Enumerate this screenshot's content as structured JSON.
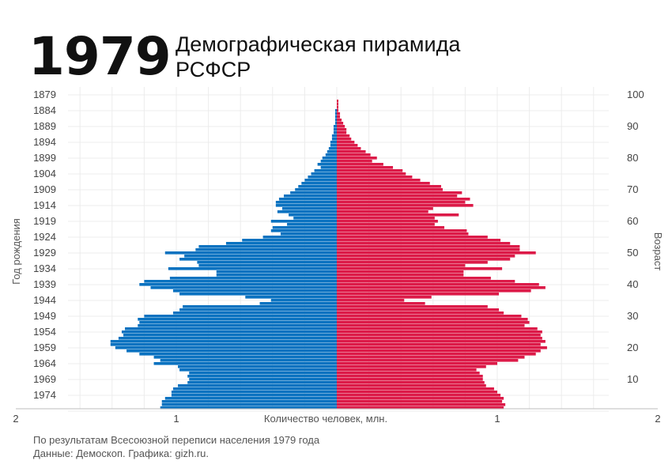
{
  "header": {
    "year": "1979",
    "title_line1": "Демографическая пирамида",
    "title_line2": "РСФСР"
  },
  "footer": {
    "line1": "По результатам Всесоюзной переписи населения 1979 года",
    "line2": "Данные: Демоскоп. Графика: gizh.ru."
  },
  "chart_data": {
    "type": "bar",
    "orientation": "horizontal-pyramid",
    "xlabel": "Количество человек, млн.",
    "ylabel_left": "Год рождения",
    "ylabel_right": "Возраст",
    "xlim": [
      -2,
      2
    ],
    "x_ticks": [
      {
        "value": -2,
        "label": "2"
      },
      {
        "value": -1,
        "label": "1"
      },
      {
        "value": 1,
        "label": "1"
      },
      {
        "value": 2,
        "label": "2"
      }
    ],
    "birth_year_ticks": [
      "1879",
      "1884",
      "1889",
      "1894",
      "1899",
      "1904",
      "1909",
      "1914",
      "1919",
      "1924",
      "1929",
      "1934",
      "1939",
      "1944",
      "1949",
      "1954",
      "1959",
      "1964",
      "1969",
      "1974"
    ],
    "age_ticks": [
      "100",
      "90",
      "80",
      "70",
      "60",
      "50",
      "40",
      "30",
      "20",
      "10"
    ],
    "series_colors": {
      "male": "#0a72c0",
      "female": "#dc1a48"
    },
    "birth_years": [
      1879,
      1880,
      1881,
      1882,
      1883,
      1884,
      1885,
      1886,
      1887,
      1888,
      1889,
      1890,
      1891,
      1892,
      1893,
      1894,
      1895,
      1896,
      1897,
      1898,
      1899,
      1900,
      1901,
      1902,
      1903,
      1904,
      1905,
      1906,
      1907,
      1908,
      1909,
      1910,
      1911,
      1912,
      1913,
      1914,
      1915,
      1916,
      1917,
      1918,
      1919,
      1920,
      1921,
      1922,
      1923,
      1924,
      1925,
      1926,
      1927,
      1928,
      1929,
      1930,
      1931,
      1932,
      1933,
      1934,
      1935,
      1936,
      1937,
      1938,
      1939,
      1940,
      1941,
      1942,
      1943,
      1944,
      1945,
      1946,
      1947,
      1948,
      1949,
      1950,
      1951,
      1952,
      1953,
      1954,
      1955,
      1956,
      1957,
      1958,
      1959,
      1960,
      1961,
      1962,
      1963,
      1964,
      1965,
      1966,
      1967,
      1968,
      1969,
      1970,
      1971,
      1972,
      1973,
      1974,
      1975,
      1976,
      1977,
      1978
    ],
    "male": [
      0.0,
      0.0,
      0.0,
      0.0,
      0.0,
      0.01,
      0.01,
      0.01,
      0.01,
      0.01,
      0.02,
      0.02,
      0.02,
      0.03,
      0.03,
      0.04,
      0.04,
      0.05,
      0.06,
      0.07,
      0.09,
      0.1,
      0.12,
      0.1,
      0.14,
      0.16,
      0.18,
      0.2,
      0.22,
      0.24,
      0.26,
      0.29,
      0.33,
      0.36,
      0.38,
      0.38,
      0.34,
      0.37,
      0.3,
      0.27,
      0.41,
      0.31,
      0.4,
      0.41,
      0.35,
      0.46,
      0.59,
      0.69,
      0.86,
      0.88,
      1.07,
      0.95,
      0.98,
      0.87,
      0.86,
      1.05,
      0.75,
      0.75,
      1.04,
      1.2,
      1.23,
      1.16,
      1.02,
      0.98,
      0.57,
      0.41,
      0.48,
      0.96,
      0.98,
      1.02,
      1.2,
      1.24,
      1.23,
      1.24,
      1.32,
      1.34,
      1.33,
      1.36,
      1.41,
      1.41,
      1.38,
      1.31,
      1.23,
      1.14,
      1.1,
      1.14,
      0.99,
      0.98,
      0.92,
      0.93,
      0.92,
      0.93,
      0.99,
      1.02,
      1.03,
      1.03,
      1.07,
      1.09,
      1.09,
      1.1
    ],
    "female": [
      0.0,
      0.0,
      0.01,
      0.01,
      0.01,
      0.01,
      0.02,
      0.02,
      0.03,
      0.04,
      0.05,
      0.06,
      0.06,
      0.08,
      0.09,
      0.11,
      0.13,
      0.15,
      0.18,
      0.21,
      0.25,
      0.22,
      0.29,
      0.35,
      0.41,
      0.43,
      0.47,
      0.52,
      0.58,
      0.65,
      0.66,
      0.78,
      0.75,
      0.83,
      0.8,
      0.85,
      0.6,
      0.57,
      0.76,
      0.61,
      0.63,
      0.61,
      0.67,
      0.81,
      0.82,
      0.94,
      1.02,
      1.08,
      1.14,
      1.14,
      1.24,
      1.11,
      1.08,
      0.94,
      0.8,
      1.03,
      0.79,
      0.79,
      0.96,
      1.11,
      1.26,
      1.3,
      1.21,
      1.01,
      0.59,
      0.42,
      0.55,
      0.94,
      1.01,
      1.04,
      1.15,
      1.19,
      1.2,
      1.17,
      1.25,
      1.28,
      1.27,
      1.28,
      1.3,
      1.27,
      1.31,
      1.27,
      1.24,
      1.17,
      1.13,
      1.0,
      0.93,
      0.87,
      0.89,
      0.91,
      0.91,
      0.92,
      0.93,
      0.98,
      1.0,
      1.02,
      1.04,
      1.03,
      1.05,
      1.04
    ]
  }
}
